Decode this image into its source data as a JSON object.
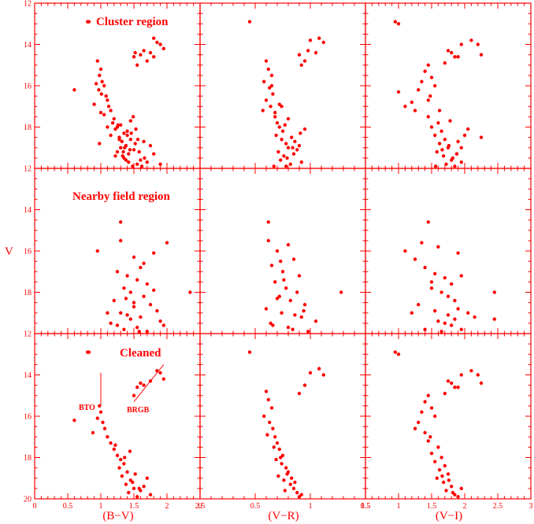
{
  "colors": {
    "accent": "#ff0000",
    "background": "#ffffff"
  },
  "figure": {
    "y_axis_label": "V",
    "x_axis_labels": [
      "(B−V)",
      "(V−R)",
      "(V−I)"
    ],
    "row_titles": [
      "Cluster region",
      "Nearby field region",
      "Cleaned"
    ],
    "annotations": {
      "bto": "BTO",
      "brgb": "BRGB"
    },
    "ytick_labels": [
      "12",
      "14",
      "16",
      "18",
      "20"
    ],
    "xtick_labels": [
      [
        "0",
        "0.5",
        "1",
        "1.5",
        "2",
        "2.5"
      ],
      [
        "0",
        "0.5",
        "1",
        "1.5"
      ],
      [
        "0.5",
        "1",
        "1.5",
        "2",
        "2.5",
        "3"
      ]
    ]
  },
  "chart_data": [
    {
      "type": "scatter",
      "panel": "cluster (B-V)",
      "xlim": [
        0,
        2.5
      ],
      "ylim": [
        20,
        12
      ],
      "ylabel": "V",
      "x": [
        0.8,
        0.82,
        1.8,
        1.85,
        1.9,
        1.95,
        1.52,
        1.6,
        1.65,
        1.75,
        1.55,
        1.7,
        1.8,
        1.5,
        0.95,
        1.0,
        0.98,
        1.02,
        0.93,
        1.05,
        0.97,
        1.01,
        1.08,
        1.1,
        0.6,
        0.9,
        1.12,
        1.05,
        1.15,
        1.2,
        1.18,
        1.25,
        1.3,
        1.22,
        1.35,
        1.28,
        1.32,
        1.4,
        1.38,
        1.45,
        1.3,
        1.25,
        1.5,
        1.42,
        1.35,
        1.6,
        1.55,
        1.7,
        1.48,
        1.38,
        1.33,
        1.44,
        1.52,
        1.65,
        1.75,
        1.4,
        1.45,
        1.28,
        1.22,
        1.58,
        1.66,
        1.8,
        1.9,
        1.0,
        1.1,
        1.15,
        0.98,
        1.36,
        1.46,
        1.56,
        1.62,
        1.42,
        1.34,
        1.26,
        1.49,
        1.53
      ],
      "y": [
        12.9,
        12.9,
        13.7,
        13.9,
        14.0,
        14.2,
        14.4,
        14.5,
        14.3,
        14.4,
        15.0,
        14.8,
        14.6,
        14.6,
        14.8,
        15.2,
        15.5,
        15.8,
        15.9,
        16.0,
        16.2,
        16.4,
        16.5,
        16.7,
        16.2,
        16.9,
        17.0,
        17.4,
        17.2,
        17.6,
        17.8,
        18.0,
        17.9,
        18.1,
        18.3,
        18.5,
        18.7,
        18.4,
        18.9,
        18.6,
        19.0,
        19.2,
        19.1,
        19.3,
        19.5,
        19.6,
        19.8,
        19.7,
        19.9,
        19.6,
        19.4,
        19.1,
        18.8,
        18.7,
        18.9,
        18.2,
        17.7,
        18.6,
        19.4,
        19.2,
        19.5,
        19.3,
        19.8,
        17.3,
        18.0,
        18.4,
        18.8,
        19.0,
        18.3,
        18.6,
        19.9,
        19.7,
        19.2,
        17.9,
        17.5,
        18.1
      ]
    },
    {
      "type": "scatter",
      "panel": "cluster (V-R)",
      "xlim": [
        0,
        1.5
      ],
      "ylim": [
        20,
        12
      ],
      "x": [
        0.45,
        1.08,
        1.0,
        1.12,
        0.98,
        0.9,
        0.95,
        0.92,
        1.05,
        0.6,
        0.62,
        0.65,
        0.58,
        0.63,
        0.66,
        0.6,
        0.64,
        0.57,
        0.68,
        0.7,
        0.72,
        0.75,
        0.69,
        0.74,
        0.78,
        0.8,
        0.71,
        0.76,
        0.73,
        0.82,
        0.67,
        0.79,
        0.85,
        0.88,
        0.9,
        0.77,
        0.83,
        0.86,
        0.68,
        0.92,
        0.8,
        0.95,
        0.72,
        0.65,
        0.84,
        0.91,
        0.78,
        0.74
      ],
      "y": [
        12.9,
        13.7,
        13.8,
        13.9,
        14.3,
        14.5,
        14.8,
        15.0,
        14.4,
        14.8,
        15.2,
        15.5,
        15.8,
        16.1,
        16.4,
        16.7,
        17.0,
        17.2,
        17.5,
        17.8,
        18.0,
        18.2,
        18.4,
        18.6,
        18.8,
        19.0,
        19.2,
        19.4,
        19.6,
        19.8,
        19.9,
        19.5,
        19.3,
        19.1,
        18.9,
        17.9,
        18.5,
        18.7,
        17.3,
        19.7,
        17.6,
        18.1,
        16.9,
        16.0,
        19.0,
        18.3,
        19.9,
        17.0
      ]
    },
    {
      "type": "scatter",
      "panel": "cluster (V-I)",
      "xlim": [
        0.5,
        3
      ],
      "ylim": [
        20,
        12
      ],
      "x": [
        0.95,
        1.0,
        2.1,
        2.2,
        2.25,
        1.95,
        1.75,
        1.8,
        1.85,
        1.7,
        1.9,
        1.45,
        1.4,
        1.5,
        1.35,
        1.55,
        1.3,
        1.48,
        1.2,
        1.1,
        1.0,
        1.25,
        1.45,
        1.6,
        1.5,
        1.65,
        1.55,
        1.7,
        1.62,
        1.75,
        1.58,
        1.68,
        1.8,
        1.72,
        1.85,
        1.9,
        1.95,
        2.0,
        1.78,
        1.62,
        1.88,
        2.05,
        2.25,
        1.82,
        1.45,
        1.95,
        1.76,
        1.66,
        1.56
      ],
      "y": [
        12.9,
        13.0,
        13.8,
        14.0,
        14.5,
        14.0,
        14.3,
        14.4,
        14.6,
        14.9,
        14.6,
        15.0,
        15.3,
        15.6,
        15.8,
        16.0,
        16.2,
        16.5,
        16.8,
        17.0,
        16.3,
        17.2,
        17.5,
        17.8,
        18.0,
        18.2,
        18.4,
        18.6,
        18.8,
        19.0,
        19.2,
        19.4,
        19.6,
        19.8,
        19.9,
        18.7,
        19.0,
        18.4,
        17.7,
        17.2,
        19.3,
        18.1,
        18.5,
        19.5,
        16.7,
        19.7,
        18.9,
        19.1,
        19.9
      ]
    },
    {
      "type": "scatter",
      "panel": "field (B-V)",
      "xlim": [
        0,
        2.5
      ],
      "ylim": [
        20,
        12
      ],
      "x": [
        1.3,
        1.3,
        2.0,
        0.95,
        1.8,
        1.5,
        1.6,
        1.25,
        1.4,
        1.55,
        1.7,
        1.35,
        1.45,
        1.65,
        1.2,
        1.5,
        1.75,
        1.85,
        1.3,
        1.4,
        1.6,
        1.9,
        2.35,
        1.15,
        1.25,
        1.55,
        1.35,
        1.7,
        1.5,
        1.45,
        1.8,
        1.1,
        1.95,
        1.65,
        1.38,
        1.58
      ],
      "y": [
        14.6,
        15.5,
        15.6,
        16.0,
        16.1,
        16.3,
        16.8,
        17.0,
        17.2,
        17.4,
        17.6,
        17.8,
        18.0,
        18.2,
        18.4,
        18.5,
        18.6,
        18.9,
        19.0,
        19.1,
        19.2,
        19.4,
        18.0,
        19.5,
        19.6,
        19.7,
        19.8,
        19.9,
        18.7,
        19.3,
        17.9,
        19.0,
        19.6,
        16.6,
        18.3,
        19.9
      ]
    },
    {
      "type": "scatter",
      "panel": "field (V-R)",
      "xlim": [
        0,
        1.5
      ],
      "ylim": [
        20,
        12
      ],
      "x": [
        0.62,
        0.62,
        0.8,
        0.7,
        0.85,
        0.65,
        0.75,
        0.9,
        0.68,
        0.78,
        0.88,
        0.72,
        0.82,
        0.95,
        0.6,
        0.74,
        0.92,
        1.05,
        1.28,
        0.66,
        0.84,
        0.98,
        0.7,
        0.86,
        0.76,
        0.64,
        0.94,
        0.8,
        0.73
      ],
      "y": [
        14.6,
        15.5,
        15.7,
        16.0,
        16.4,
        16.7,
        17.0,
        17.2,
        17.5,
        17.8,
        18.0,
        18.2,
        18.4,
        18.6,
        18.8,
        19.0,
        19.2,
        19.4,
        18.0,
        19.6,
        19.8,
        19.9,
        18.3,
        19.1,
        17.4,
        19.5,
        18.9,
        19.7,
        16.5
      ]
    },
    {
      "type": "scatter",
      "panel": "field (V-I)",
      "xlim": [
        0.5,
        3
      ],
      "ylim": [
        20,
        12
      ],
      "x": [
        1.45,
        1.35,
        1.6,
        1.1,
        1.25,
        1.4,
        1.55,
        1.7,
        1.8,
        1.95,
        1.5,
        1.65,
        1.75,
        1.85,
        1.3,
        1.9,
        2.05,
        2.15,
        2.45,
        2.45,
        1.2,
        1.6,
        1.7,
        1.8,
        1.4,
        1.65,
        1.9,
        1.55,
        1.75,
        1.85,
        1.5,
        1.95
      ],
      "y": [
        14.6,
        15.6,
        15.8,
        16.0,
        16.4,
        16.8,
        17.1,
        17.3,
        17.6,
        17.2,
        17.8,
        18.0,
        18.2,
        18.4,
        18.6,
        18.8,
        19.0,
        19.2,
        18.0,
        19.3,
        19.0,
        19.4,
        19.5,
        19.6,
        19.8,
        19.9,
        16.1,
        18.9,
        19.1,
        19.3,
        17.5,
        19.8
      ]
    },
    {
      "type": "scatter",
      "panel": "cleaned (B-V)",
      "xlim": [
        0,
        2.5
      ],
      "ylim": [
        20,
        12
      ],
      "x": [
        0.8,
        0.82,
        1.85,
        1.9,
        1.95,
        1.6,
        1.65,
        1.55,
        1.75,
        1.5,
        0.98,
        1.0,
        0.95,
        1.03,
        1.06,
        0.6,
        0.88,
        1.1,
        1.15,
        1.2,
        1.25,
        1.3,
        1.35,
        1.28,
        1.4,
        1.32,
        1.45,
        1.38,
        1.5,
        1.42,
        1.55,
        1.6,
        1.48,
        1.7,
        1.36,
        1.52,
        1.65,
        1.75,
        1.44,
        1.22,
        1.58
      ],
      "y": [
        12.9,
        12.9,
        13.8,
        13.9,
        14.2,
        14.4,
        14.5,
        14.6,
        14.3,
        15.0,
        15.5,
        15.8,
        16.1,
        16.3,
        16.6,
        16.2,
        16.8,
        17.0,
        17.3,
        17.6,
        17.9,
        18.1,
        18.3,
        18.5,
        18.7,
        18.9,
        19.1,
        19.3,
        19.5,
        19.7,
        19.9,
        19.6,
        19.2,
        19.0,
        18.0,
        18.8,
        19.4,
        19.8,
        17.7,
        17.4,
        19.5
      ]
    },
    {
      "type": "scatter",
      "panel": "cleaned (V-R)",
      "xlim": [
        0,
        1.5
      ],
      "ylim": [
        20,
        12
      ],
      "x": [
        0.45,
        1.08,
        1.0,
        1.12,
        0.95,
        0.9,
        0.6,
        0.62,
        0.65,
        0.58,
        0.63,
        0.66,
        0.68,
        0.7,
        0.72,
        0.75,
        0.69,
        0.74,
        0.78,
        0.8,
        0.71,
        0.76,
        0.82,
        0.85,
        0.88,
        0.9,
        0.77,
        0.83,
        0.73,
        0.67,
        0.79,
        0.86,
        0.92,
        0.61
      ],
      "y": [
        12.9,
        13.7,
        13.9,
        14.0,
        14.5,
        14.9,
        14.8,
        15.2,
        15.6,
        16.0,
        16.3,
        16.6,
        17.0,
        17.3,
        17.6,
        17.9,
        18.1,
        18.3,
        18.5,
        18.7,
        18.9,
        19.1,
        19.3,
        19.5,
        19.7,
        19.9,
        19.6,
        19.0,
        18.0,
        17.5,
        18.8,
        19.2,
        19.8,
        16.9
      ]
    },
    {
      "type": "scatter",
      "panel": "cleaned (V-I)",
      "xlim": [
        0.5,
        3
      ],
      "ylim": [
        20,
        12
      ],
      "x": [
        0.95,
        1.0,
        2.1,
        2.2,
        2.25,
        1.95,
        1.75,
        1.8,
        1.85,
        1.7,
        1.9,
        1.45,
        1.4,
        1.5,
        1.35,
        1.55,
        1.3,
        1.25,
        1.48,
        1.6,
        1.5,
        1.65,
        1.55,
        1.7,
        1.62,
        1.75,
        1.58,
        1.68,
        1.8,
        1.72,
        1.85,
        1.9,
        1.95,
        1.45,
        1.66,
        1.76,
        1.82,
        1.4
      ],
      "y": [
        12.9,
        13.0,
        13.8,
        14.0,
        14.4,
        14.0,
        14.3,
        14.4,
        14.6,
        14.9,
        14.6,
        15.0,
        15.3,
        15.6,
        15.8,
        16.0,
        16.3,
        16.6,
        17.0,
        17.5,
        17.8,
        18.0,
        18.2,
        18.4,
        18.6,
        18.8,
        19.0,
        19.2,
        19.4,
        19.6,
        19.8,
        19.9,
        19.5,
        17.2,
        18.9,
        19.1,
        19.7,
        16.8
      ]
    }
  ]
}
